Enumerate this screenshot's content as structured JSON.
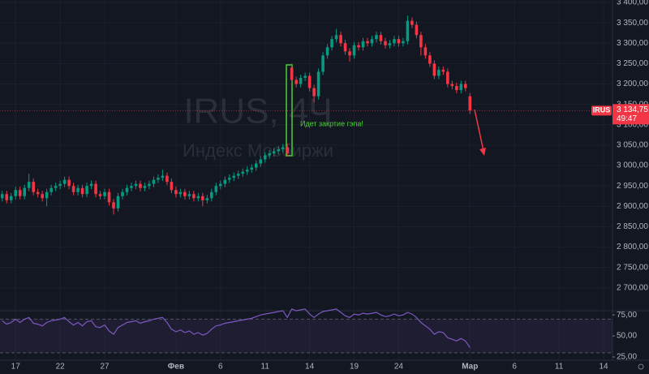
{
  "chart_data": [
    {
      "type": "candlestick",
      "watermark": "IRUS, 4Ч",
      "watermark_subtitle": "Индекс Мосбиржи",
      "annotation": "Идет закртие гэпа!",
      "up_color": "#089981",
      "down_color": "#f23645",
      "open": [
        2920,
        2930,
        2915,
        2925,
        2940,
        2925,
        2945,
        2960,
        2935,
        2930,
        2920,
        2935,
        2945,
        2950,
        2955,
        2965,
        2950,
        2935,
        2945,
        2930,
        2950,
        2955,
        2930,
        2925,
        2935,
        2910,
        2895,
        2925,
        2935,
        2945,
        2950,
        2955,
        2945,
        2950,
        2955,
        2965,
        2970,
        2975,
        2960,
        2940,
        2930,
        2935,
        2925,
        2930,
        2920,
        2925,
        2915,
        2920,
        2935,
        2950,
        2955,
        2965,
        2970,
        2975,
        2980,
        2985,
        2990,
        2995,
        3005,
        3015,
        3025,
        3030,
        3035,
        3040,
        3045,
        3240,
        3210,
        3200,
        3215,
        3220,
        3190,
        3170,
        3230,
        3270,
        3290,
        3310,
        3320,
        3300,
        3280,
        3270,
        3295,
        3290,
        3305,
        3300,
        3310,
        3320,
        3305,
        3295,
        3300,
        3310,
        3300,
        3305,
        3355,
        3345,
        3320,
        3290,
        3270,
        3250,
        3220,
        3235,
        3230,
        3200,
        3195,
        3185,
        3200,
        3170
      ],
      "high": [
        2938,
        2938,
        2933,
        2948,
        2948,
        2953,
        2980,
        2968,
        2943,
        2938,
        2943,
        2953,
        2958,
        2963,
        2973,
        2973,
        2958,
        2953,
        2953,
        2958,
        2963,
        2963,
        2938,
        2943,
        2943,
        2918,
        2933,
        2943,
        2953,
        2958,
        2963,
        2963,
        2958,
        2963,
        2973,
        2978,
        2990,
        2983,
        2968,
        2948,
        2943,
        2943,
        2938,
        2938,
        2933,
        2933,
        2928,
        2943,
        2958,
        2963,
        2973,
        2978,
        2983,
        2988,
        2993,
        2998,
        3003,
        3013,
        3023,
        3033,
        3038,
        3043,
        3048,
        3053,
        3053,
        3250,
        3218,
        3223,
        3228,
        3228,
        3198,
        3238,
        3278,
        3298,
        3318,
        3335,
        3328,
        3308,
        3288,
        3303,
        3303,
        3313,
        3313,
        3318,
        3328,
        3328,
        3313,
        3308,
        3318,
        3318,
        3313,
        3368,
        3363,
        3353,
        3328,
        3298,
        3278,
        3258,
        3243,
        3243,
        3238,
        3208,
        3203,
        3208,
        3208,
        3178
      ],
      "low": [
        2912,
        2907,
        2907,
        2917,
        2917,
        2917,
        2937,
        2927,
        2922,
        2912,
        2900,
        2927,
        2937,
        2942,
        2947,
        2942,
        2927,
        2927,
        2922,
        2922,
        2942,
        2922,
        2917,
        2917,
        2902,
        2880,
        2887,
        2917,
        2927,
        2937,
        2942,
        2937,
        2937,
        2942,
        2947,
        2957,
        2962,
        2952,
        2932,
        2922,
        2922,
        2917,
        2917,
        2912,
        2912,
        2900,
        2907,
        2912,
        2927,
        2942,
        2947,
        2957,
        2962,
        2967,
        2972,
        2977,
        2982,
        2987,
        2997,
        3007,
        3017,
        3022,
        3027,
        3032,
        3022,
        3200,
        3192,
        3192,
        3207,
        3182,
        3155,
        3162,
        3222,
        3262,
        3282,
        3302,
        3292,
        3272,
        3255,
        3262,
        3282,
        3282,
        3292,
        3292,
        3302,
        3297,
        3287,
        3287,
        3292,
        3292,
        3292,
        3297,
        3337,
        3312,
        3270,
        3262,
        3242,
        3212,
        3212,
        3222,
        3192,
        3187,
        3177,
        3177,
        3182,
        3127
      ],
      "close": [
        2930,
        2915,
        2925,
        2940,
        2925,
        2945,
        2960,
        2935,
        2930,
        2920,
        2935,
        2945,
        2950,
        2955,
        2965,
        2950,
        2935,
        2945,
        2930,
        2950,
        2955,
        2930,
        2925,
        2935,
        2910,
        2895,
        2925,
        2935,
        2945,
        2950,
        2955,
        2945,
        2950,
        2955,
        2965,
        2970,
        2975,
        2960,
        2940,
        2930,
        2935,
        2925,
        2930,
        2920,
        2925,
        2915,
        2920,
        2935,
        2950,
        2955,
        2965,
        2970,
        2975,
        2980,
        2985,
        2990,
        2995,
        3005,
        3015,
        3025,
        3030,
        3035,
        3040,
        3045,
        3030,
        3210,
        3200,
        3215,
        3220,
        3190,
        3170,
        3230,
        3270,
        3290,
        3310,
        3320,
        3300,
        3280,
        3270,
        3295,
        3290,
        3305,
        3300,
        3310,
        3320,
        3305,
        3295,
        3300,
        3310,
        3300,
        3305,
        3355,
        3345,
        3320,
        3290,
        3270,
        3250,
        3220,
        3235,
        3230,
        3200,
        3195,
        3185,
        3200,
        3190,
        3135
      ],
      "ylim": [
        2650,
        3400
      ],
      "yticks": [
        {
          "value": 3400,
          "label": "3 400,00"
        },
        {
          "value": 3350,
          "label": "3 350,00"
        },
        {
          "value": 3300,
          "label": "3 300,00"
        },
        {
          "value": 3250,
          "label": "3 250,00"
        },
        {
          "value": 3200,
          "label": "3 200,00"
        },
        {
          "value": 3150,
          "label": "3 150,00"
        },
        {
          "value": 3100,
          "label": "3 100,00"
        },
        {
          "value": 3050,
          "label": "3 050,00"
        },
        {
          "value": 3000,
          "label": "3 000,00"
        },
        {
          "value": 2950,
          "label": "2 950,00"
        },
        {
          "value": 2900,
          "label": "2 900,00"
        },
        {
          "value": 2850,
          "label": "2 850,00"
        },
        {
          "value": 2800,
          "label": "2 800,00"
        },
        {
          "value": 2750,
          "label": "2 750,00"
        },
        {
          "value": 2700,
          "label": "2 700,00"
        }
      ],
      "xlim": [
        -0.5,
        137
      ],
      "xticks": [
        {
          "value": 3,
          "label": "17"
        },
        {
          "value": 13,
          "label": "22"
        },
        {
          "value": 23,
          "label": "27"
        },
        {
          "value": 39,
          "label": "Фев"
        },
        {
          "value": 49,
          "label": "6"
        },
        {
          "value": 59,
          "label": "11"
        },
        {
          "value": 69,
          "label": "14"
        },
        {
          "value": 79,
          "label": "19"
        },
        {
          "value": 89,
          "label": "24"
        },
        {
          "value": 105,
          "label": "Мар"
        },
        {
          "value": 115,
          "label": "6"
        },
        {
          "value": 125,
          "label": "11"
        },
        {
          "value": 135,
          "label": "14"
        }
      ],
      "grid": true,
      "last_price": {
        "symbol": "IRUS",
        "value": 3134.75,
        "label": "3 134,75",
        "countdown": "49:47"
      }
    },
    {
      "type": "line",
      "color": "#7e57c2",
      "values": [
        68,
        64,
        66,
        70,
        66,
        70,
        72,
        65,
        64,
        62,
        66,
        68,
        69,
        70,
        72,
        67,
        63,
        66,
        62,
        67,
        68,
        61,
        60,
        63,
        56,
        52,
        60,
        63,
        66,
        67,
        68,
        65,
        67,
        68,
        70,
        71,
        72,
        66,
        58,
        55,
        57,
        54,
        56,
        52,
        54,
        51,
        53,
        58,
        62,
        63,
        65,
        66,
        67,
        68,
        69,
        70,
        71,
        73,
        75,
        76,
        77,
        78,
        79,
        80,
        72,
        82,
        80,
        81,
        82,
        76,
        72,
        76,
        79,
        80,
        81,
        82,
        78,
        74,
        72,
        76,
        75,
        77,
        76,
        77,
        78,
        75,
        73,
        74,
        76,
        74,
        75,
        78,
        76,
        72,
        66,
        62,
        58,
        52,
        55,
        54,
        48,
        46,
        44,
        47,
        44,
        36
      ],
      "band": [
        30,
        70
      ],
      "ylim": [
        25,
        80
      ],
      "yticks": [
        {
          "value": 75,
          "label": "75,00"
        },
        {
          "value": 50,
          "label": "50,00"
        },
        {
          "value": 25,
          "label": "25,00"
        }
      ]
    }
  ]
}
